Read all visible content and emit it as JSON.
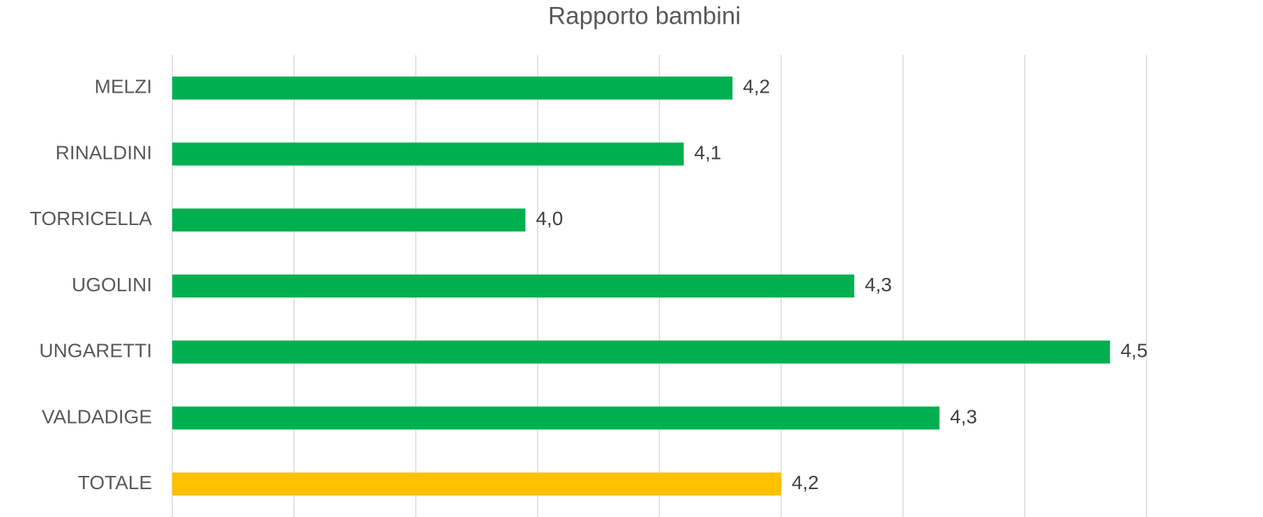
{
  "chart_data": {
    "type": "bar",
    "orientation": "horizontal",
    "title": "Rapporto bambini",
    "categories": [
      "MELZI",
      "RINALDINI",
      "TORRICELLA",
      "UGOLINI",
      "UNGARETTI",
      "VALDADIGE",
      "TOTALE"
    ],
    "values": [
      4.16,
      4.12,
      3.99,
      4.26,
      4.47,
      4.33,
      4.2
    ],
    "value_labels": [
      "4,2",
      "4,1",
      "4,0",
      "4,3",
      "4,5",
      "4,3",
      "4,2"
    ],
    "colors": [
      "#00b050",
      "#00b050",
      "#00b050",
      "#00b050",
      "#00b050",
      "#00b050",
      "#ffc000"
    ],
    "xlim": [
      3.7,
      4.5
    ],
    "xticks": [
      3.7,
      3.8,
      3.9,
      4.0,
      4.1,
      4.2,
      4.3,
      4.4,
      4.5
    ],
    "grid": true
  }
}
